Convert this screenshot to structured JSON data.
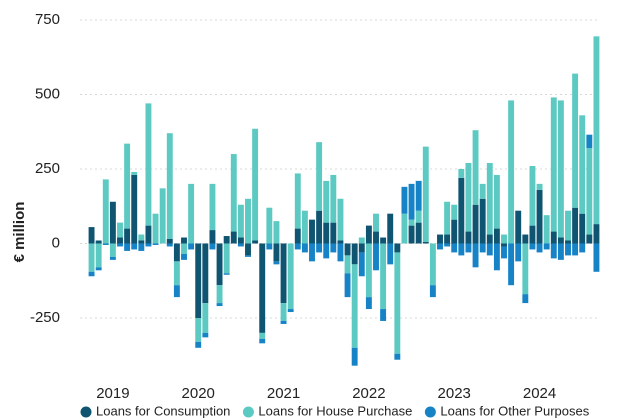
{
  "chart_data": {
    "type": "stacked_bar",
    "y_label": "€ million",
    "categories": [
      null,
      null,
      null,
      "2019",
      null,
      null,
      null,
      null,
      null,
      null,
      null,
      null,
      null,
      null,
      null,
      "2020",
      null,
      null,
      null,
      null,
      null,
      null,
      null,
      null,
      null,
      null,
      null,
      "2021",
      null,
      null,
      null,
      null,
      null,
      null,
      null,
      null,
      null,
      null,
      null,
      "2022",
      null,
      null,
      null,
      null,
      null,
      null,
      null,
      null,
      null,
      null,
      null,
      "2023",
      null,
      null,
      null,
      null,
      null,
      null,
      null,
      null,
      null,
      null,
      null,
      "2024",
      null,
      null,
      null,
      null,
      null,
      null,
      null,
      null
    ],
    "series": [
      {
        "name": "Loans for Consumption",
        "color": "#0f5470",
        "values": [
          55,
          10,
          0,
          140,
          20,
          50,
          230,
          10,
          60,
          0,
          0,
          15,
          -60,
          20,
          0,
          -250,
          -200,
          45,
          -140,
          25,
          40,
          20,
          -40,
          10,
          -300,
          0,
          -60,
          -200,
          0,
          50,
          0,
          80,
          110,
          70,
          70,
          10,
          -40,
          -70,
          -30,
          60,
          40,
          20,
          100,
          -30,
          0,
          60,
          70,
          5,
          0,
          30,
          30,
          80,
          220,
          40,
          130,
          150,
          30,
          50,
          -10,
          0,
          110,
          30,
          60,
          180,
          0,
          40,
          20,
          10,
          120,
          100,
          30,
          65
        ]
      },
      {
        "name": "Loans for House Purchase",
        "color": "#5cc9c2",
        "values": [
          -95,
          -80,
          215,
          -45,
          50,
          285,
          10,
          20,
          410,
          100,
          185,
          355,
          -80,
          -35,
          200,
          -80,
          -100,
          155,
          -60,
          -100,
          260,
          110,
          150,
          375,
          -20,
          120,
          75,
          -60,
          -220,
          185,
          110,
          0,
          230,
          140,
          160,
          140,
          -60,
          -280,
          20,
          -180,
          60,
          -220,
          0,
          -340,
          100,
          20,
          40,
          320,
          -140,
          0,
          110,
          50,
          30,
          230,
          250,
          50,
          240,
          180,
          30,
          480,
          0,
          -170,
          200,
          20,
          95,
          450,
          460,
          100,
          450,
          330,
          290,
          630
        ]
      },
      {
        "name": "Loans for Other Purposes",
        "color": "#1683c7",
        "values": [
          -15,
          -10,
          -5,
          -10,
          -10,
          -25,
          -20,
          -25,
          -10,
          -5,
          0,
          -10,
          -40,
          -20,
          -20,
          -20,
          -15,
          -20,
          -10,
          -5,
          0,
          -10,
          -5,
          0,
          -15,
          -20,
          -10,
          -10,
          -10,
          -20,
          -30,
          -60,
          -30,
          -50,
          -30,
          -60,
          -80,
          -60,
          -80,
          -40,
          -90,
          -40,
          -70,
          -20,
          90,
          120,
          100,
          0,
          -40,
          -20,
          -10,
          -30,
          -40,
          -30,
          -80,
          -30,
          -40,
          -90,
          -40,
          -140,
          -60,
          -30,
          -20,
          -30,
          -20,
          -50,
          -55,
          -40,
          -40,
          -30,
          45,
          -95
        ]
      }
    ],
    "ylim": [
      -450,
      775
    ],
    "yticks": [
      750,
      500,
      250,
      0,
      -250
    ],
    "grid": true,
    "legend": "bottom"
  }
}
